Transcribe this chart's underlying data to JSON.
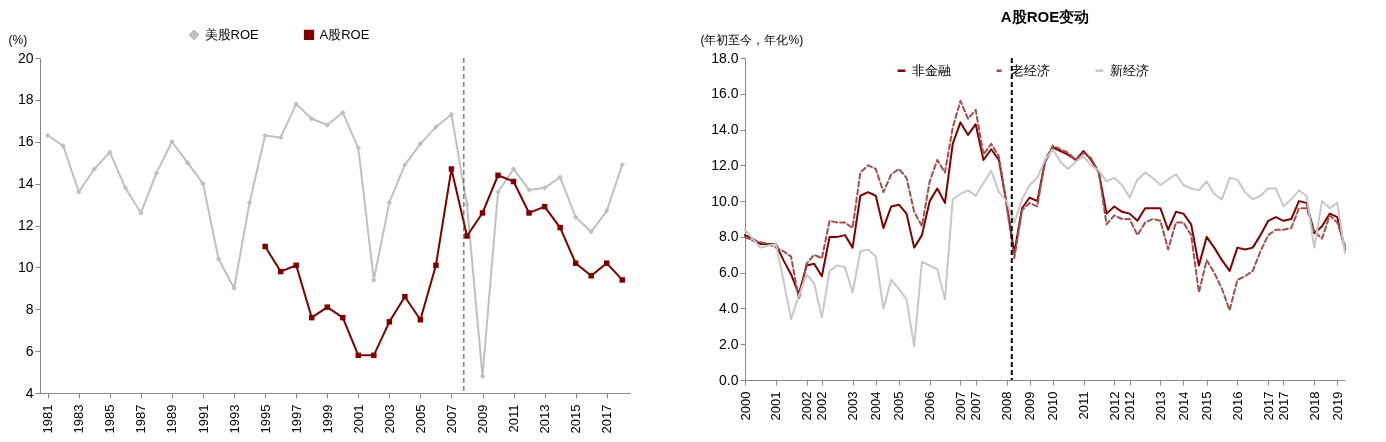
{
  "chart_data": [
    {
      "type": "line",
      "ylabel": "(%)",
      "legend": "top",
      "x": [
        1981,
        1982,
        1983,
        1984,
        1985,
        1986,
        1987,
        1988,
        1989,
        1990,
        1991,
        1992,
        1993,
        1994,
        1995,
        1996,
        1997,
        1998,
        1999,
        2000,
        2001,
        2002,
        2003,
        2004,
        2005,
        2006,
        2007,
        2008,
        2009,
        2010,
        2011,
        2012,
        2013,
        2014,
        2015,
        2016,
        2017,
        2018
      ],
      "xlim": [
        1980.5,
        2018.5
      ],
      "xticks": [
        1981,
        1983,
        1985,
        1987,
        1989,
        1991,
        1993,
        1995,
        1997,
        1999,
        2001,
        2003,
        2005,
        2007,
        2009,
        2011,
        2013,
        2015,
        2017
      ],
      "ylim": [
        4,
        20
      ],
      "yticks": [
        4,
        6,
        8,
        10,
        12,
        14,
        16,
        18,
        20
      ],
      "series": [
        {
          "name": "美股ROE",
          "color": "#c0c0c0",
          "marker": "diamond",
          "values": [
            16.3,
            15.8,
            13.6,
            14.7,
            15.5,
            13.8,
            12.6,
            14.5,
            16.0,
            15.0,
            14.0,
            10.4,
            9.0,
            13.1,
            16.3,
            16.2,
            17.8,
            17.1,
            16.8,
            17.4,
            15.7,
            9.4,
            13.1,
            14.9,
            15.9,
            16.7,
            17.3,
            13.0,
            4.8,
            13.6,
            14.7,
            13.7,
            13.8,
            14.3,
            12.4,
            11.7,
            12.7,
            14.9
          ]
        },
        {
          "name": "A股ROE",
          "color": "#7f0000",
          "marker": "square",
          "x": [
            1995,
            1996,
            1997,
            1998,
            1999,
            2000,
            2001,
            2002,
            2003,
            2004,
            2005,
            2006,
            2007,
            2008,
            2009,
            2010,
            2011,
            2012,
            2013,
            2014,
            2015,
            2016,
            2017,
            2018
          ],
          "values": [
            11.0,
            9.8,
            10.1,
            7.6,
            8.1,
            7.6,
            5.8,
            5.8,
            7.4,
            8.6,
            7.5,
            10.1,
            14.7,
            11.5,
            12.6,
            14.4,
            14.1,
            12.6,
            12.9,
            11.9,
            10.2,
            9.6,
            10.2,
            9.4
          ]
        }
      ],
      "ref_lines": [
        {
          "axis": "x",
          "value": 2007.8,
          "color": "#404040",
          "line_style": "dashed"
        }
      ]
    },
    {
      "type": "line",
      "title": "A股ROE变动",
      "ylabel": "(年初至今，年化%)",
      "legend": "top",
      "x": [
        "2000-01",
        "2000-04",
        "2000-07",
        "2000-10",
        "2001-01",
        "2001-04",
        "2001-07",
        "2001-10",
        "2002-01",
        "2002-04",
        "2002-07",
        "2002-10",
        "2003-01",
        "2003-04",
        "2003-07",
        "2003-10",
        "2004-01",
        "2004-04",
        "2004-07",
        "2004-10",
        "2005-01",
        "2005-04",
        "2005-07",
        "2005-10",
        "2006-01",
        "2006-04",
        "2006-07",
        "2006-10",
        "2007-01",
        "2007-04",
        "2007-07",
        "2007-10",
        "2008-01",
        "2008-04",
        "2008-07",
        "2008-10",
        "2009-01",
        "2009-04",
        "2009-07",
        "2009-10",
        "2010-01",
        "2010-04",
        "2010-07",
        "2010-10",
        "2011-01",
        "2011-04",
        "2011-07",
        "2011-10",
        "2012-01",
        "2012-04",
        "2012-07",
        "2012-10",
        "2013-01",
        "2013-04",
        "2013-07",
        "2013-10",
        "2014-01",
        "2014-04",
        "2014-07",
        "2014-10",
        "2015-01",
        "2015-04",
        "2015-07",
        "2015-10",
        "2016-01",
        "2016-04",
        "2016-07",
        "2016-10",
        "2017-01",
        "2017-04",
        "2017-07",
        "2017-10",
        "2018-01",
        "2018-04",
        "2018-07",
        "2018-10",
        "2019-01",
        "2019-04",
        "2019-07"
      ],
      "xlim": [
        "2000-01",
        "2019-07"
      ],
      "xticks": [
        {
          "value": "2000-01",
          "label": "2000"
        },
        {
          "value": "2001-01",
          "label": "2001"
        },
        {
          "value": "2002-01",
          "label": "2002"
        },
        {
          "value": "2002-07",
          "label": "2002"
        },
        {
          "value": "2003-07",
          "label": "2003"
        },
        {
          "value": "2004-04",
          "label": "2004"
        },
        {
          "value": "2005-01",
          "label": "2005"
        },
        {
          "value": "2006-01",
          "label": "2006"
        },
        {
          "value": "2007-01",
          "label": "2007"
        },
        {
          "value": "2007-07",
          "label": "2007"
        },
        {
          "value": "2008-07",
          "label": "2008"
        },
        {
          "value": "2009-04",
          "label": "2009"
        },
        {
          "value": "2010-01",
          "label": "2010"
        },
        {
          "value": "2011-01",
          "label": "2011"
        },
        {
          "value": "2012-01",
          "label": "2012"
        },
        {
          "value": "2012-07",
          "label": "2012"
        },
        {
          "value": "2013-07",
          "label": "2013"
        },
        {
          "value": "2014-04",
          "label": "2014"
        },
        {
          "value": "2015-01",
          "label": "2015"
        },
        {
          "value": "2016-01",
          "label": "2016"
        },
        {
          "value": "2017-01",
          "label": "2017"
        },
        {
          "value": "2017-07",
          "label": "2017"
        },
        {
          "value": "2018-07",
          "label": "2018"
        },
        {
          "value": "2019-04",
          "label": "2019"
        }
      ],
      "ylim": [
        0,
        18
      ],
      "yticks": [
        {
          "value": 0,
          "label": "0.0"
        },
        {
          "value": 2,
          "label": "2.0"
        },
        {
          "value": 4,
          "label": "4.0"
        },
        {
          "value": 6,
          "label": "6.0"
        },
        {
          "value": 8,
          "label": "8.0"
        },
        {
          "value": 10,
          "label": "10.0"
        },
        {
          "value": 12,
          "label": "12.0"
        },
        {
          "value": 14,
          "label": "14.0"
        },
        {
          "value": 16,
          "label": "16.0"
        },
        {
          "value": 18,
          "label": "18.0"
        }
      ],
      "series": [
        {
          "name": "非金融",
          "color": "#7f0000",
          "line_style": "solid",
          "values": [
            8.1,
            7.9,
            7.6,
            7.6,
            7.6,
            6.7,
            5.9,
            4.8,
            6.4,
            6.5,
            5.8,
            8.0,
            8.0,
            8.1,
            7.4,
            10.3,
            10.5,
            10.3,
            8.5,
            9.7,
            9.8,
            9.3,
            7.4,
            8.1,
            10.0,
            10.7,
            9.9,
            13.2,
            14.4,
            13.7,
            14.3,
            12.3,
            12.9,
            12.3,
            9.9,
            7.1,
            9.6,
            10.2,
            10.0,
            12.2,
            13.0,
            12.8,
            12.6,
            12.3,
            12.8,
            12.3,
            11.6,
            9.3,
            9.7,
            9.4,
            9.3,
            8.9,
            9.6,
            9.6,
            9.6,
            8.4,
            9.4,
            9.3,
            8.7,
            6.4,
            8.0,
            7.4,
            6.7,
            6.1,
            7.4,
            7.3,
            7.4,
            8.1,
            8.9,
            9.1,
            8.9,
            9.0,
            10.0,
            9.9,
            8.2,
            8.6,
            9.3,
            9.1,
            7.3
          ]
        },
        {
          "name": "老经济",
          "color": "#a0504f",
          "line_style": "dashed",
          "values": [
            8.0,
            7.8,
            7.7,
            7.6,
            7.4,
            7.2,
            6.9,
            4.5,
            6.5,
            7.0,
            6.8,
            8.9,
            8.8,
            8.8,
            8.5,
            11.6,
            12.0,
            11.8,
            10.5,
            11.5,
            11.8,
            11.3,
            9.4,
            8.6,
            11.1,
            12.3,
            11.6,
            14.1,
            15.6,
            14.6,
            15.1,
            12.6,
            13.2,
            12.5,
            9.8,
            6.8,
            9.5,
            9.9,
            9.7,
            12.3,
            13.1,
            12.9,
            12.7,
            12.3,
            12.7,
            12.4,
            11.6,
            8.7,
            9.2,
            9.0,
            9.0,
            8.1,
            8.8,
            9.0,
            8.9,
            7.3,
            8.8,
            8.8,
            8.1,
            4.9,
            6.7,
            6.0,
            5.1,
            3.9,
            5.6,
            5.8,
            6.1,
            7.2,
            8.1,
            8.4,
            8.4,
            8.5,
            9.6,
            9.6,
            8.3,
            7.9,
            9.2,
            8.8,
            7.5
          ]
        },
        {
          "name": "新经济",
          "color": "#c8c8c8",
          "line_style": "solid",
          "values": [
            8.4,
            7.9,
            7.4,
            7.5,
            7.6,
            5.6,
            3.4,
            4.7,
            5.9,
            5.4,
            3.5,
            6.1,
            6.4,
            6.3,
            4.9,
            7.2,
            7.3,
            6.9,
            4.0,
            5.6,
            5.1,
            4.5,
            1.9,
            6.6,
            6.4,
            6.2,
            4.5,
            10.1,
            10.4,
            10.6,
            10.3,
            11.0,
            11.7,
            10.5,
            10.0,
            8.8,
            10.1,
            10.9,
            11.3,
            12.3,
            12.9,
            12.2,
            11.8,
            12.2,
            12.5,
            12.0,
            11.7,
            11.1,
            11.3,
            10.9,
            10.2,
            11.2,
            11.6,
            11.3,
            10.9,
            11.2,
            11.5,
            10.9,
            10.7,
            10.6,
            11.1,
            10.4,
            10.1,
            11.3,
            11.2,
            10.5,
            10.1,
            10.3,
            10.7,
            10.7,
            9.7,
            10.1,
            10.6,
            10.3,
            7.4,
            10.0,
            9.6,
            9.9,
            7.1
          ]
        }
      ],
      "ref_lines": [
        {
          "axis": "x",
          "value": "2008-09",
          "color": "#000000",
          "line_style": "dashed"
        }
      ]
    }
  ]
}
